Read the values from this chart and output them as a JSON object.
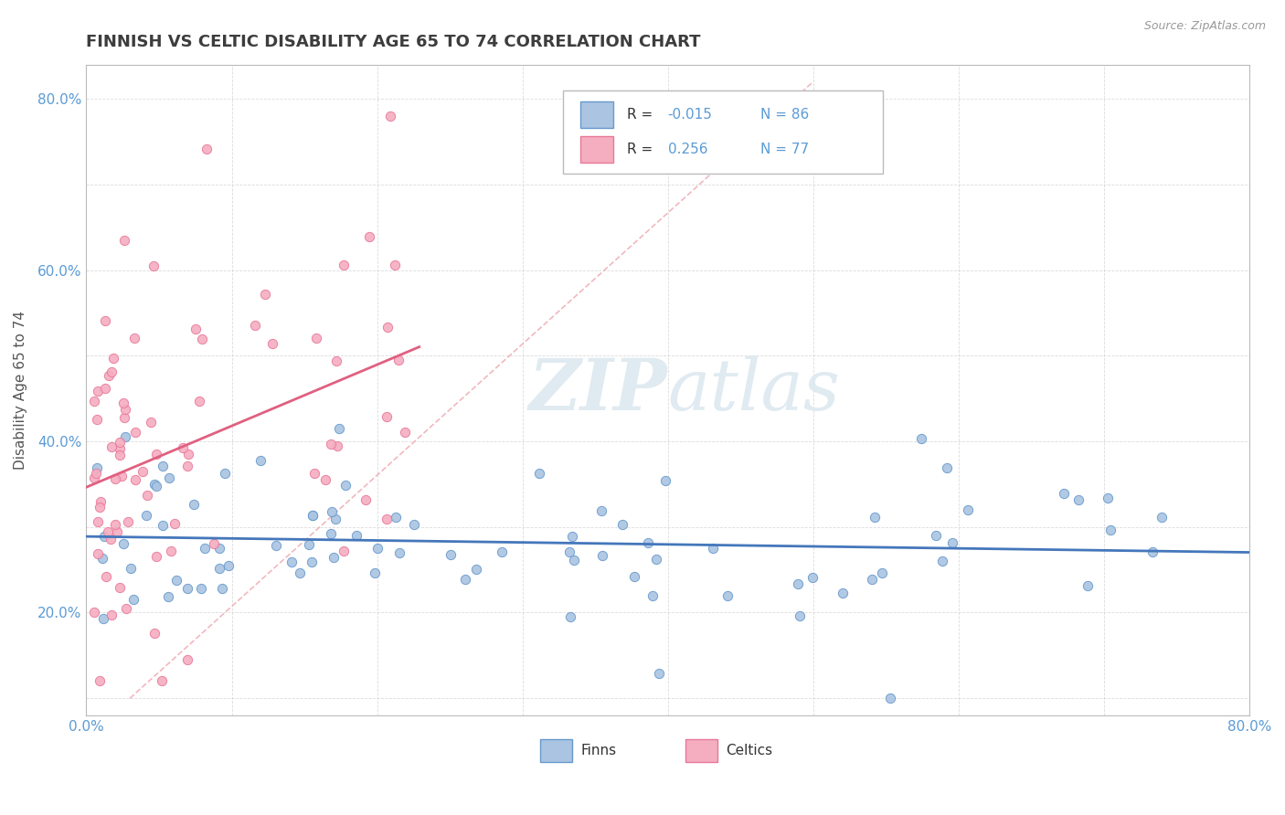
{
  "title": "FINNISH VS CELTIC DISABILITY AGE 65 TO 74 CORRELATION CHART",
  "source_text": "Source: ZipAtlas.com",
  "ylabel": "Disability Age 65 to 74",
  "xlim": [
    0.0,
    0.8
  ],
  "ylim": [
    0.08,
    0.84
  ],
  "xtick_positions": [
    0.0,
    0.1,
    0.2,
    0.3,
    0.4,
    0.5,
    0.6,
    0.7,
    0.8
  ],
  "xticklabels": [
    "0.0%",
    "",
    "",
    "",
    "",
    "",
    "",
    "",
    "80.0%"
  ],
  "ytick_positions": [
    0.1,
    0.2,
    0.3,
    0.4,
    0.5,
    0.6,
    0.7,
    0.8
  ],
  "yticklabels": [
    "",
    "20.0%",
    "",
    "40.0%",
    "",
    "60.0%",
    "",
    "80.0%"
  ],
  "finn_color": "#aac4e2",
  "celtic_color": "#f5adc0",
  "finn_edge": "#6699cc",
  "celtic_edge": "#e8789a",
  "trend_finn_color": "#4477bb",
  "trend_celtic_color": "#e06080",
  "diag_color": "#f0b0b8",
  "watermark": "ZIPAtlas",
  "tick_color": "#5b9bd5",
  "grid_color": "#cccccc",
  "title_color": "#3d3d3d"
}
